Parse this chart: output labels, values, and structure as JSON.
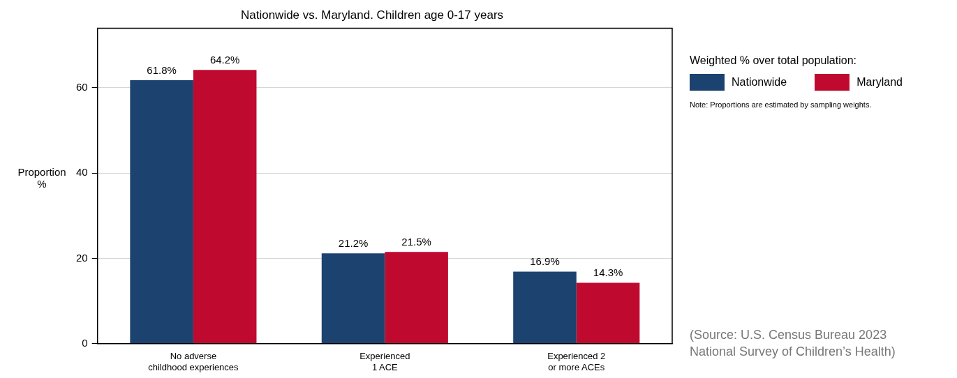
{
  "chart_data": {
    "type": "bar",
    "title": "Nationwide vs. Maryland. Children age 0-17 years",
    "ylabel": "Proportion\n%",
    "legend_title": "Weighted % over total population:",
    "categories": [
      "No adverse\nchildhood experiences",
      "Experienced\n1 ACE",
      "Experienced 2\nor more ACEs"
    ],
    "series": [
      {
        "name": "Nationwide",
        "color": "#1c4270",
        "values": [
          61.8,
          21.2,
          16.9
        ],
        "value_labels": [
          "61.8%",
          "21.2%",
          "16.9%"
        ]
      },
      {
        "name": "Maryland",
        "color": "#c0092f",
        "values": [
          64.2,
          21.5,
          14.3
        ],
        "value_labels": [
          "64.2%",
          "21.5%",
          "14.3%"
        ]
      }
    ],
    "ylim": [
      0,
      74
    ],
    "yticks": [
      0,
      20,
      40,
      60
    ],
    "grid": "y",
    "legend": "right",
    "annotations": [
      "Note: Proportions are estimated by sampling weights.",
      "(Source: U.S. Census Bureau 2023\nNational Survey of Children’s Health)"
    ]
  }
}
